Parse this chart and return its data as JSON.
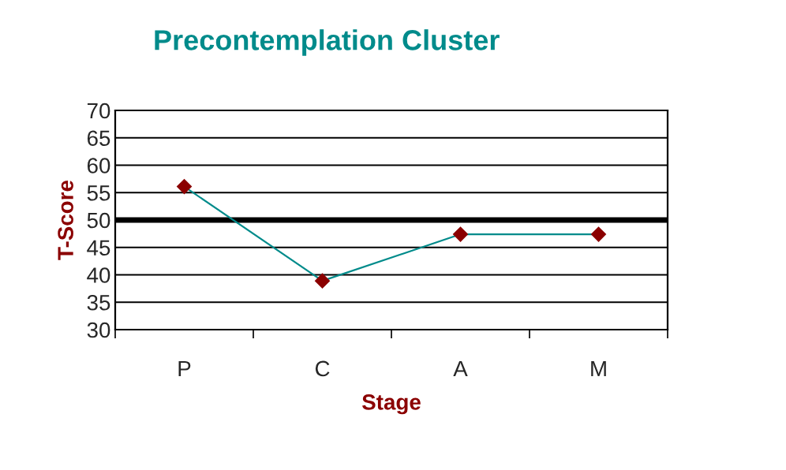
{
  "chart_data": {
    "type": "line",
    "title": "Precontemplation Cluster",
    "xlabel": "Stage",
    "ylabel": "T-Score",
    "categories": [
      "P",
      "C",
      "A",
      "M"
    ],
    "series": [
      {
        "color": "#008b8b",
        "values": [
          56.1,
          38.9,
          47.4,
          47.4
        ]
      }
    ],
    "marker": "diamond",
    "ylim": [
      30,
      70
    ],
    "yticks": [
      30,
      35,
      40,
      45,
      50,
      55,
      60,
      65,
      70
    ],
    "grid": "y",
    "ref_lines": [
      {
        "axis": "y",
        "value": 50,
        "color": "#000000"
      }
    ]
  }
}
